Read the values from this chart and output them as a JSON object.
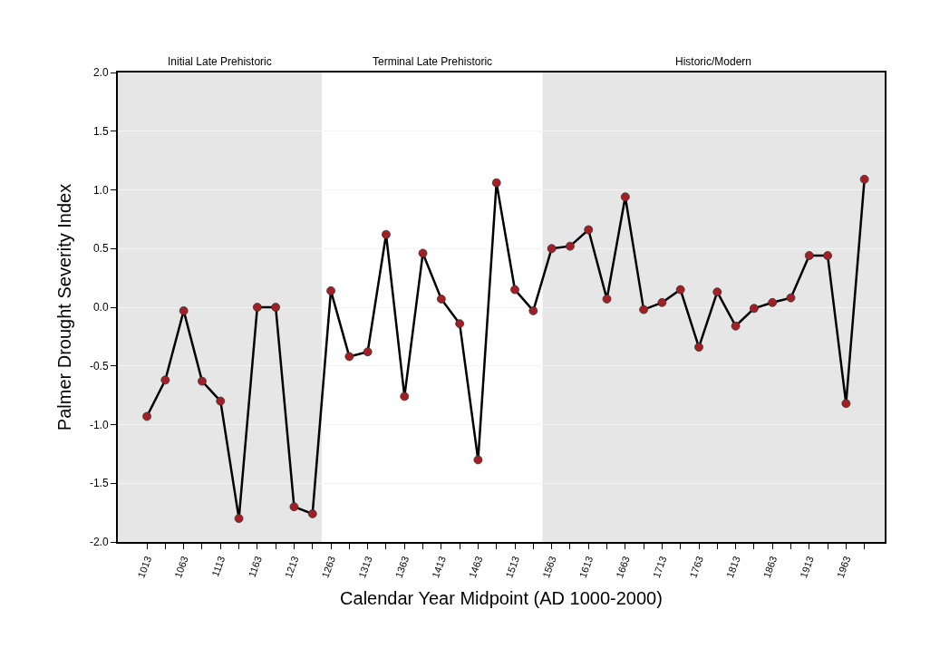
{
  "chart_data": {
    "type": "line",
    "xlabel": "Calendar Year Midpoint (AD 1000-2000)",
    "ylabel": "Palmer Drought Severity Index",
    "x": [
      1012.5,
      1037.5,
      1062.5,
      1087.5,
      1112.5,
      1137.5,
      1162.5,
      1187.5,
      1212.5,
      1237.5,
      1262.5,
      1287.5,
      1312.5,
      1337.5,
      1362.5,
      1387.5,
      1412.5,
      1437.5,
      1462.5,
      1487.5,
      1512.5,
      1537.5,
      1562.5,
      1587.5,
      1612.5,
      1637.5,
      1662.5,
      1687.5,
      1712.5,
      1737.5,
      1762.5,
      1787.5,
      1812.5,
      1837.5,
      1862.5,
      1887.5,
      1912.5,
      1937.5,
      1962.5,
      1987.5
    ],
    "series": [
      {
        "color": "#000000",
        "colors": [
          "#a31f24",
          "#a31f24",
          "#a31f24",
          "#a31f24",
          "#a31f24",
          "#a31f24",
          "#a31f24",
          "#a31f24",
          "#a31f24",
          "#a31f24",
          "#a31f24",
          "#a31f24",
          "#a31f24",
          "#a31f24",
          "#a31f24",
          "#a31f24",
          "#a31f24",
          "#a31f24",
          "#a31f24",
          "#a31f24",
          "#a31f24",
          "#a31f24",
          "#a31f24",
          "#a31f24",
          "#a31f24",
          "#a31f24",
          "#a31f24",
          "#a31f24",
          "#a31f24",
          "#a31f24",
          "#a31f24",
          "#a31f24",
          "#a31f24",
          "#a31f24",
          "#a31f24",
          "#a31f24",
          "#a31f24",
          "#a31f24",
          "#a31f24",
          "#a31f24"
        ],
        "values": [
          -0.93,
          -0.62,
          -0.03,
          -0.63,
          -0.8,
          -1.8,
          0.0,
          0.0,
          -1.7,
          -1.76,
          0.14,
          -0.42,
          -0.38,
          0.62,
          -0.76,
          0.46,
          0.07,
          -0.14,
          -1.3,
          1.06,
          0.15,
          -0.03,
          0.5,
          0.52,
          0.66,
          0.07,
          0.94,
          -0.02,
          0.04,
          0.15,
          -0.34,
          0.13,
          -0.16,
          -0.01,
          0.04,
          0.08,
          0.44,
          0.44,
          -0.82,
          1.09
        ]
      }
    ],
    "marker": "circle",
    "line_style": "solid",
    "grid": "y",
    "xlim": [
      973,
      2015
    ],
    "xticks": [
      {
        "value": 1012.5,
        "label": "1013"
      },
      {
        "value": 1037.5,
        "label": null
      },
      {
        "value": 1062.5,
        "label": "1063"
      },
      {
        "value": 1087.5,
        "label": null
      },
      {
        "value": 1112.5,
        "label": "1113"
      },
      {
        "value": 1137.5,
        "label": null
      },
      {
        "value": 1162.5,
        "label": "1163"
      },
      {
        "value": 1187.5,
        "label": null
      },
      {
        "value": 1212.5,
        "label": "1213"
      },
      {
        "value": 1237.5,
        "label": null
      },
      {
        "value": 1262.5,
        "label": "1263"
      },
      {
        "value": 1287.5,
        "label": null
      },
      {
        "value": 1312.5,
        "label": "1313"
      },
      {
        "value": 1337.5,
        "label": null
      },
      {
        "value": 1362.5,
        "label": "1363"
      },
      {
        "value": 1387.5,
        "label": null
      },
      {
        "value": 1412.5,
        "label": "1413"
      },
      {
        "value": 1437.5,
        "label": null
      },
      {
        "value": 1462.5,
        "label": "1463"
      },
      {
        "value": 1487.5,
        "label": null
      },
      {
        "value": 1512.5,
        "label": "1513"
      },
      {
        "value": 1537.5,
        "label": null
      },
      {
        "value": 1562.5,
        "label": "1563"
      },
      {
        "value": 1587.5,
        "label": null
      },
      {
        "value": 1612.5,
        "label": "1613"
      },
      {
        "value": 1637.5,
        "label": null
      },
      {
        "value": 1662.5,
        "label": "1663"
      },
      {
        "value": 1687.5,
        "label": null
      },
      {
        "value": 1712.5,
        "label": "1713"
      },
      {
        "value": 1737.5,
        "label": null
      },
      {
        "value": 1762.5,
        "label": "1763"
      },
      {
        "value": 1787.5,
        "label": null
      },
      {
        "value": 1812.5,
        "label": "1813"
      },
      {
        "value": 1837.5,
        "label": null
      },
      {
        "value": 1862.5,
        "label": "1863"
      },
      {
        "value": 1887.5,
        "label": null
      },
      {
        "value": 1912.5,
        "label": "1913"
      },
      {
        "value": 1937.5,
        "label": null
      },
      {
        "value": 1962.5,
        "label": "1963"
      },
      {
        "value": 1987.5,
        "label": null
      }
    ],
    "annotations": [
      "Terminal Late Prehistoric"
    ],
    "ylim": [
      -2,
      2
    ],
    "yticks": [
      {
        "value": -2,
        "label": "-2.0"
      },
      {
        "value": -1.5,
        "label": "-1.5"
      },
      {
        "value": -1,
        "label": "-1.0"
      },
      {
        "value": -0.5,
        "label": "-0.5"
      },
      {
        "value": 0,
        "label": "0.0"
      },
      {
        "value": 0.5,
        "label": "0.5"
      },
      {
        "value": 1,
        "label": "1.0"
      },
      {
        "value": 1.5,
        "label": "1.5"
      },
      {
        "value": 2,
        "label": "2.0"
      }
    ],
    "bands": [
      {
        "axis": "x",
        "from": 973,
        "to": 1250,
        "label": "Initial Late Prehistoric",
        "color": "#e6e6e6"
      },
      {
        "axis": "x",
        "from": 1550,
        "to": 2015,
        "label": "Historic/Modern",
        "color": "#e6e6e6"
      }
    ]
  }
}
